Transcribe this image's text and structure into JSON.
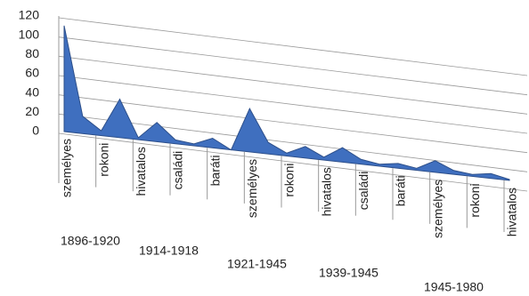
{
  "chart_data": {
    "type": "area",
    "color": "#3f6fbf",
    "grid": true,
    "ylim": [
      0,
      120
    ],
    "yticks": [
      0,
      20,
      40,
      60,
      80,
      100,
      120
    ],
    "categories": [
      "személyes",
      null,
      "rokoni",
      null,
      "hivatalos",
      null,
      "családi",
      null,
      "baráti",
      null,
      "személyes",
      null,
      "rokoni",
      null,
      "hivatalos",
      null,
      "családi",
      null,
      "baráti",
      null,
      "személyes",
      null,
      "rokoni",
      null,
      "hivatalos"
    ],
    "groups": [
      "1896-1920",
      "1914-1918",
      "1921-1945",
      "1939-1945",
      "1945-1980"
    ],
    "values": [
      110,
      18,
      5,
      40,
      2,
      20,
      4,
      2,
      10,
      0,
      45,
      12,
      3,
      12,
      3,
      15,
      5,
      2,
      5,
      2,
      12,
      4,
      2,
      5,
      1
    ]
  }
}
